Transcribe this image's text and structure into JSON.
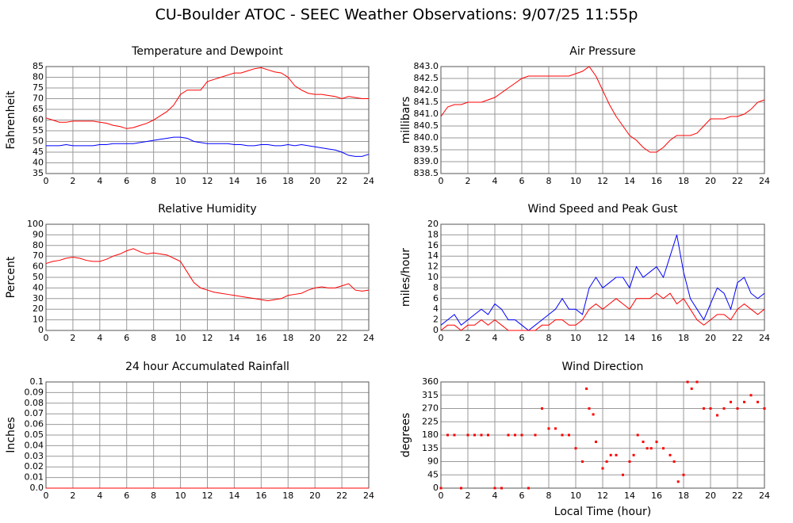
{
  "title": "CU-Boulder ATOC - SEEC Weather Observations: 9/07/25 11:55p",
  "chart_data": [
    {
      "type": "line",
      "title": "Temperature and Dewpoint",
      "ylabel": "Fahrenheit",
      "xlim": [
        0,
        24
      ],
      "xticks": [
        0,
        2,
        4,
        6,
        8,
        10,
        12,
        14,
        16,
        18,
        20,
        22,
        24
      ],
      "ylim": [
        35,
        85
      ],
      "yticks": [
        35,
        40,
        45,
        50,
        55,
        60,
        65,
        70,
        75,
        80,
        85
      ],
      "grid": true,
      "x": [
        0,
        0.5,
        1,
        1.5,
        2,
        2.5,
        3,
        3.5,
        4,
        4.5,
        5,
        5.5,
        6,
        6.5,
        7,
        7.5,
        8,
        8.5,
        9,
        9.5,
        10,
        10.5,
        11,
        11.5,
        12,
        12.5,
        13,
        13.5,
        14,
        14.5,
        15,
        15.5,
        16,
        16.5,
        17,
        17.5,
        18,
        18.5,
        19,
        19.5,
        20,
        20.5,
        21,
        21.5,
        22,
        22.5,
        23,
        23.5,
        24
      ],
      "series": [
        {
          "color": "#ff0000",
          "values": [
            61,
            60,
            59,
            59,
            59.5,
            59.5,
            59.5,
            59.5,
            59,
            58.5,
            57.5,
            57,
            56,
            56.5,
            57.5,
            58.5,
            60,
            62,
            64,
            67,
            72,
            74,
            74,
            74,
            78,
            79,
            80,
            81,
            82,
            82,
            83,
            84,
            84.5,
            83.5,
            82.5,
            82,
            80,
            76,
            74,
            72.5,
            72,
            72,
            71.5,
            71,
            70,
            71,
            70.5,
            70,
            70
          ]
        },
        {
          "color": "#0000ff",
          "values": [
            48,
            48,
            48,
            48.5,
            48,
            48,
            48,
            48,
            48.5,
            48.5,
            49,
            49,
            49,
            49,
            49.5,
            50,
            50.5,
            51,
            51.5,
            52,
            52,
            51.5,
            50,
            49.5,
            49,
            49,
            49,
            49,
            48.5,
            48.5,
            48,
            48,
            48.5,
            48.5,
            48,
            48,
            48.5,
            48,
            48.5,
            48,
            47.5,
            47,
            46.5,
            46,
            45,
            43.5,
            43,
            43,
            44
          ]
        }
      ]
    },
    {
      "type": "line",
      "title": "Air Pressure",
      "ylabel": "millibars",
      "xlim": [
        0,
        24
      ],
      "xticks": [
        0,
        2,
        4,
        6,
        8,
        10,
        12,
        14,
        16,
        18,
        20,
        22,
        24
      ],
      "ylim": [
        838.5,
        843
      ],
      "yticks": [
        838.5,
        {
          "value": 839,
          "label": "839.0"
        },
        839.5,
        {
          "value": 840,
          "label": "840.0"
        },
        840.5,
        {
          "value": 841,
          "label": "841.0"
        },
        841.5,
        {
          "value": 842,
          "label": "842.0"
        },
        842.5,
        {
          "value": 843,
          "label": "843.0"
        }
      ],
      "grid": true,
      "x": [
        0,
        0.5,
        1,
        1.5,
        2,
        2.5,
        3,
        3.5,
        4,
        4.5,
        5,
        5.5,
        6,
        6.5,
        7,
        7.5,
        8,
        8.5,
        9,
        9.5,
        10,
        10.5,
        11,
        11.5,
        12,
        12.5,
        13,
        13.5,
        14,
        14.5,
        15,
        15.5,
        16,
        16.5,
        17,
        17.5,
        18,
        18.5,
        19,
        19.5,
        20,
        20.5,
        21,
        21.5,
        22,
        22.5,
        23,
        23.5,
        24
      ],
      "series": [
        {
          "color": "#ff0000",
          "values": [
            840.9,
            841.3,
            841.4,
            841.4,
            841.5,
            841.5,
            841.5,
            841.6,
            841.7,
            841.9,
            842.1,
            842.3,
            842.5,
            842.6,
            842.6,
            842.6,
            842.6,
            842.6,
            842.6,
            842.6,
            842.7,
            842.8,
            843,
            842.6,
            842,
            841.4,
            840.9,
            840.5,
            840.1,
            839.9,
            839.6,
            839.4,
            839.4,
            839.6,
            839.9,
            840.1,
            840.1,
            840.1,
            840.2,
            840.5,
            840.8,
            840.8,
            840.8,
            840.9,
            840.9,
            841,
            841.2,
            841.5,
            841.6
          ]
        }
      ]
    },
    {
      "type": "line",
      "title": "Relative Humidity",
      "ylabel": "Percent",
      "xlim": [
        0,
        24
      ],
      "xticks": [
        0,
        2,
        4,
        6,
        8,
        10,
        12,
        14,
        16,
        18,
        20,
        22,
        24
      ],
      "ylim": [
        0,
        100
      ],
      "yticks": [
        0,
        10,
        20,
        30,
        40,
        50,
        60,
        70,
        80,
        90,
        100
      ],
      "grid": true,
      "x": [
        0,
        0.5,
        1,
        1.5,
        2,
        2.5,
        3,
        3.5,
        4,
        4.5,
        5,
        5.5,
        6,
        6.5,
        7,
        7.5,
        8,
        8.5,
        9,
        9.5,
        10,
        10.5,
        11,
        11.5,
        12,
        12.5,
        13,
        13.5,
        14,
        14.5,
        15,
        15.5,
        16,
        16.5,
        17,
        17.5,
        18,
        18.5,
        19,
        19.5,
        20,
        20.5,
        21,
        21.5,
        22,
        22.5,
        23,
        23.5,
        24
      ],
      "series": [
        {
          "color": "#ff0000",
          "values": [
            63,
            65,
            66,
            68,
            69,
            68,
            66,
            65,
            65,
            67,
            70,
            72,
            75,
            77,
            74,
            72,
            73,
            72,
            71,
            68,
            65,
            55,
            45,
            40,
            38,
            36,
            35,
            34,
            33,
            32,
            31,
            30,
            29,
            28,
            29,
            30,
            33,
            34,
            35,
            38,
            40,
            41,
            40,
            40,
            42,
            44,
            38,
            37,
            38
          ]
        }
      ]
    },
    {
      "type": "line",
      "title": "Wind Speed and Peak Gust",
      "ylabel": "miles/hour",
      "xlim": [
        0,
        24
      ],
      "xticks": [
        0,
        2,
        4,
        6,
        8,
        10,
        12,
        14,
        16,
        18,
        20,
        22,
        24
      ],
      "ylim": [
        0,
        20
      ],
      "yticks": [
        0,
        2,
        4,
        6,
        8,
        10,
        12,
        14,
        16,
        18,
        20
      ],
      "grid": true,
      "x": [
        0,
        0.5,
        1,
        1.5,
        2,
        2.5,
        3,
        3.5,
        4,
        4.5,
        5,
        5.5,
        6,
        6.5,
        7,
        7.5,
        8,
        8.5,
        9,
        9.5,
        10,
        10.5,
        11,
        11.5,
        12,
        12.5,
        13,
        13.5,
        14,
        14.5,
        15,
        15.5,
        16,
        16.5,
        17,
        17.5,
        18,
        18.5,
        19,
        19.5,
        20,
        20.5,
        21,
        21.5,
        22,
        22.5,
        23,
        23.5,
        24
      ],
      "series": [
        {
          "color": "#0000ff",
          "values": [
            1,
            2,
            3,
            1,
            2,
            3,
            4,
            3,
            5,
            4,
            2,
            2,
            1,
            0,
            1,
            2,
            3,
            4,
            6,
            4,
            4,
            3,
            8,
            10,
            8,
            9,
            10,
            10,
            8,
            12,
            10,
            11,
            12,
            10,
            14,
            18,
            11,
            6,
            4,
            2,
            5,
            8,
            7,
            4,
            9,
            10,
            7,
            6,
            7
          ]
        },
        {
          "color": "#ff0000",
          "values": [
            0,
            1,
            1,
            0,
            1,
            1,
            2,
            1,
            2,
            1,
            0,
            0,
            0,
            0,
            0,
            1,
            1,
            2,
            2,
            1,
            1,
            2,
            4,
            5,
            4,
            5,
            6,
            5,
            4,
            6,
            6,
            6,
            7,
            6,
            7,
            5,
            6,
            4,
            2,
            1,
            2,
            3,
            3,
            2,
            4,
            5,
            4,
            3,
            4
          ]
        }
      ]
    },
    {
      "type": "line",
      "title": "24 hour Accumulated Rainfall",
      "ylabel": "Inches",
      "xlim": [
        0,
        24
      ],
      "xticks": [
        0,
        2,
        4,
        6,
        8,
        10,
        12,
        14,
        16,
        18,
        20,
        22,
        24
      ],
      "ylim": [
        0,
        0.1
      ],
      "yticks": [
        {
          "value": 0,
          "label": "0.0"
        },
        0.01,
        0.02,
        0.03,
        0.04,
        0.05,
        0.06,
        0.07,
        0.08,
        0.09,
        0.1
      ],
      "grid": true,
      "x": [
        0,
        24
      ],
      "series": [
        {
          "color": "#ff0000",
          "values": [
            0,
            0
          ]
        }
      ]
    },
    {
      "type": "scatter",
      "title": "Wind Direction",
      "ylabel": "degrees",
      "xlabel": "Local Time (hour)",
      "xlim": [
        0,
        24
      ],
      "xticks": [
        0,
        2,
        4,
        6,
        8,
        10,
        12,
        14,
        16,
        18,
        20,
        22,
        24
      ],
      "ylim": [
        0,
        360
      ],
      "yticks": [
        0,
        45,
        90,
        135,
        180,
        225,
        270,
        315,
        360
      ],
      "grid": true,
      "x": [
        0,
        0.5,
        1,
        1.5,
        2,
        2.5,
        3,
        3.5,
        4,
        4.5,
        5,
        5.5,
        6,
        6.5,
        7,
        7.5,
        8,
        8.5,
        9,
        9.5,
        10,
        10.5,
        10.8,
        11,
        11.3,
        11.5,
        12,
        12.3,
        12.6,
        13,
        13.5,
        14,
        14.3,
        14.6,
        15,
        15.3,
        15.6,
        16,
        16.5,
        17,
        17.3,
        17.6,
        18,
        18.3,
        18.6,
        19,
        19.5,
        20,
        20.5,
        21,
        21.5,
        22,
        22.5,
        23,
        23.5,
        24
      ],
      "series": [
        {
          "color": "#ff0000",
          "values": [
            0,
            180,
            180,
            0,
            180,
            180,
            180,
            180,
            0,
            0,
            180,
            180,
            180,
            0,
            180,
            270,
            202,
            202,
            180,
            180,
            135,
            90,
            337,
            270,
            250,
            157,
            67,
            90,
            112,
            112,
            45,
            90,
            112,
            180,
            157,
            135,
            135,
            157,
            135,
            112,
            90,
            22,
            45,
            360,
            337,
            360,
            270,
            270,
            247,
            270,
            292,
            270,
            292,
            315,
            292,
            270
          ]
        }
      ]
    }
  ]
}
